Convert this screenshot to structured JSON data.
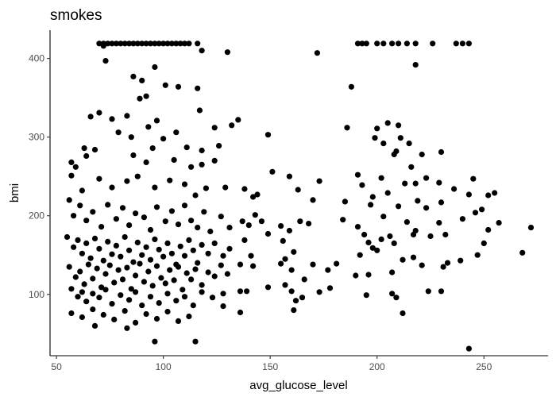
{
  "chart_data": {
    "type": "scatter",
    "title": "smokes",
    "xlabel": "avg_glucose_level",
    "ylabel": "bmi",
    "xlim": [
      47,
      280
    ],
    "ylim": [
      22,
      436
    ],
    "xticks": [
      50,
      100,
      150,
      200,
      250
    ],
    "yticks": [
      100,
      200,
      300,
      400
    ],
    "grid": false,
    "point_color": "#000000",
    "cluster_note": "dense cluster 55-120 glucose, 80-250 bmi; cap at 419 bmi",
    "points": [
      [
        70,
        419
      ],
      [
        72,
        419
      ],
      [
        74,
        419
      ],
      [
        76,
        419
      ],
      [
        78,
        419
      ],
      [
        80,
        419
      ],
      [
        82,
        419
      ],
      [
        84,
        419
      ],
      [
        86,
        419
      ],
      [
        88,
        419
      ],
      [
        90,
        419
      ],
      [
        92,
        419
      ],
      [
        94,
        419
      ],
      [
        96,
        419
      ],
      [
        98,
        419
      ],
      [
        100,
        419
      ],
      [
        102,
        419
      ],
      [
        104,
        419
      ],
      [
        106,
        419
      ],
      [
        108,
        419
      ],
      [
        110,
        419
      ],
      [
        112,
        419
      ],
      [
        116,
        419
      ],
      [
        191,
        419
      ],
      [
        193,
        419
      ],
      [
        195,
        419
      ],
      [
        200,
        419
      ],
      [
        203,
        419
      ],
      [
        207,
        419
      ],
      [
        210,
        419
      ],
      [
        214,
        419
      ],
      [
        218,
        419
      ],
      [
        226,
        419
      ],
      [
        237,
        419
      ],
      [
        240,
        419
      ],
      [
        243,
        419
      ],
      [
        72,
        416
      ],
      [
        118,
        410
      ],
      [
        130,
        408
      ],
      [
        172,
        407
      ],
      [
        73,
        397
      ],
      [
        218,
        392
      ],
      [
        86,
        377
      ],
      [
        96,
        389
      ],
      [
        90,
        372
      ],
      [
        101,
        366
      ],
      [
        107,
        364
      ],
      [
        92,
        352
      ],
      [
        89,
        349
      ],
      [
        116,
        362
      ],
      [
        188,
        364
      ],
      [
        66,
        326
      ],
      [
        70,
        331
      ],
      [
        76,
        323
      ],
      [
        83,
        327
      ],
      [
        97,
        321
      ],
      [
        117,
        334
      ],
      [
        124,
        312
      ],
      [
        132,
        315
      ],
      [
        135,
        322
      ],
      [
        79,
        306
      ],
      [
        85,
        300
      ],
      [
        93,
        313
      ],
      [
        100,
        298
      ],
      [
        106,
        306
      ],
      [
        149,
        303
      ],
      [
        186,
        312
      ],
      [
        200,
        311
      ],
      [
        205,
        318
      ],
      [
        210,
        315
      ],
      [
        63,
        286
      ],
      [
        68,
        284
      ],
      [
        86,
        277
      ],
      [
        95,
        286
      ],
      [
        111,
        287
      ],
      [
        118,
        283
      ],
      [
        126,
        289
      ],
      [
        199,
        299
      ],
      [
        203,
        292
      ],
      [
        211,
        299
      ],
      [
        215,
        292
      ],
      [
        209,
        282
      ],
      [
        230,
        281
      ],
      [
        57,
        268
      ],
      [
        59,
        262
      ],
      [
        64,
        276
      ],
      [
        92,
        268
      ],
      [
        105,
        271
      ],
      [
        113,
        262
      ],
      [
        118,
        265
      ],
      [
        124,
        270
      ],
      [
        151,
        256
      ],
      [
        159,
        250
      ],
      [
        173,
        244
      ],
      [
        191,
        252
      ],
      [
        202,
        248
      ],
      [
        208,
        278
      ],
      [
        216,
        262
      ],
      [
        221,
        278
      ],
      [
        57,
        251
      ],
      [
        62,
        232
      ],
      [
        70,
        247
      ],
      [
        76,
        236
      ],
      [
        83,
        244
      ],
      [
        88,
        250
      ],
      [
        96,
        236
      ],
      [
        103,
        245
      ],
      [
        110,
        240
      ],
      [
        115,
        226
      ],
      [
        120,
        235
      ],
      [
        129,
        236
      ],
      [
        138,
        234
      ],
      [
        144,
        227
      ],
      [
        163,
        233
      ],
      [
        193,
        239
      ],
      [
        198,
        224
      ],
      [
        205,
        229
      ],
      [
        213,
        241
      ],
      [
        218,
        241
      ],
      [
        223,
        248
      ],
      [
        229,
        242
      ],
      [
        236,
        234
      ],
      [
        243,
        227
      ],
      [
        245,
        247
      ],
      [
        252,
        226
      ],
      [
        255,
        229
      ],
      [
        142,
        224
      ],
      [
        170,
        220
      ],
      [
        185,
        218
      ],
      [
        197,
        214
      ],
      [
        210,
        212
      ],
      [
        219,
        219
      ],
      [
        223,
        210
      ],
      [
        230,
        217
      ],
      [
        249,
        208
      ],
      [
        257,
        191
      ],
      [
        272,
        185
      ],
      [
        268,
        153
      ],
      [
        56,
        220
      ],
      [
        58,
        200
      ],
      [
        61,
        213
      ],
      [
        64,
        194
      ],
      [
        67,
        205
      ],
      [
        71,
        186
      ],
      [
        74,
        214
      ],
      [
        78,
        196
      ],
      [
        81,
        210
      ],
      [
        84,
        188
      ],
      [
        87,
        203
      ],
      [
        91,
        198
      ],
      [
        94,
        182
      ],
      [
        97,
        211
      ],
      [
        101,
        193
      ],
      [
        104,
        206
      ],
      [
        107,
        189
      ],
      [
        110,
        213
      ],
      [
        113,
        194
      ],
      [
        116,
        185
      ],
      [
        119,
        205
      ],
      [
        122,
        180
      ],
      [
        127,
        199
      ],
      [
        131,
        185
      ],
      [
        137,
        193
      ],
      [
        140,
        188
      ],
      [
        143,
        201
      ],
      [
        146,
        193
      ],
      [
        155,
        187
      ],
      [
        159,
        181
      ],
      [
        164,
        193
      ],
      [
        168,
        190
      ],
      [
        184,
        195
      ],
      [
        191,
        186
      ],
      [
        194,
        176
      ],
      [
        203,
        199
      ],
      [
        206,
        174
      ],
      [
        214,
        192
      ],
      [
        218,
        181
      ],
      [
        229,
        191
      ],
      [
        240,
        196
      ],
      [
        246,
        204
      ],
      [
        232,
        176
      ],
      [
        252,
        182
      ],
      [
        55,
        173
      ],
      [
        58,
        160
      ],
      [
        60,
        169
      ],
      [
        62,
        152
      ],
      [
        64,
        165
      ],
      [
        66,
        146
      ],
      [
        68,
        171
      ],
      [
        70,
        158
      ],
      [
        72,
        143
      ],
      [
        74,
        167
      ],
      [
        76,
        151
      ],
      [
        78,
        162
      ],
      [
        80,
        148
      ],
      [
        82,
        173
      ],
      [
        84,
        156
      ],
      [
        86,
        141
      ],
      [
        88,
        166
      ],
      [
        90,
        150
      ],
      [
        92,
        160
      ],
      [
        94,
        144
      ],
      [
        96,
        170
      ],
      [
        98,
        157
      ],
      [
        100,
        148
      ],
      [
        102,
        165
      ],
      [
        104,
        152
      ],
      [
        106,
        138
      ],
      [
        108,
        161
      ],
      [
        110,
        149
      ],
      [
        112,
        169
      ],
      [
        114,
        156
      ],
      [
        116,
        140
      ],
      [
        118,
        163
      ],
      [
        121,
        152
      ],
      [
        124,
        165
      ],
      [
        128,
        149
      ],
      [
        131,
        158
      ],
      [
        138,
        169
      ],
      [
        141,
        149
      ],
      [
        149,
        177
      ],
      [
        156,
        168
      ],
      [
        157,
        145
      ],
      [
        161,
        154
      ],
      [
        196,
        166
      ],
      [
        198,
        159
      ],
      [
        200,
        156
      ],
      [
        202,
        170
      ],
      [
        208,
        165
      ],
      [
        217,
        176
      ],
      [
        225,
        174
      ],
      [
        250,
        165
      ],
      [
        56,
        135
      ],
      [
        59,
        122
      ],
      [
        61,
        129
      ],
      [
        63,
        113
      ],
      [
        65,
        138
      ],
      [
        67,
        120
      ],
      [
        69,
        133
      ],
      [
        71,
        109
      ],
      [
        73,
        126
      ],
      [
        75,
        137
      ],
      [
        77,
        115
      ],
      [
        79,
        131
      ],
      [
        81,
        119
      ],
      [
        83,
        134
      ],
      [
        85,
        107
      ],
      [
        87,
        124
      ],
      [
        89,
        139
      ],
      [
        91,
        116
      ],
      [
        93,
        129
      ],
      [
        95,
        111
      ],
      [
        97,
        136
      ],
      [
        99,
        121
      ],
      [
        101,
        114
      ],
      [
        103,
        131
      ],
      [
        105,
        118
      ],
      [
        107,
        135
      ],
      [
        109,
        106
      ],
      [
        111,
        127
      ],
      [
        113,
        119
      ],
      [
        115,
        132
      ],
      [
        118,
        112
      ],
      [
        121,
        128
      ],
      [
        124,
        123
      ],
      [
        127,
        137
      ],
      [
        130,
        126
      ],
      [
        136,
        138
      ],
      [
        142,
        136
      ],
      [
        155,
        139
      ],
      [
        160,
        131
      ],
      [
        166,
        119
      ],
      [
        170,
        138
      ],
      [
        177,
        131
      ],
      [
        181,
        139
      ],
      [
        190,
        124
      ],
      [
        192,
        150
      ],
      [
        196,
        125
      ],
      [
        207,
        128
      ],
      [
        212,
        144
      ],
      [
        217,
        147
      ],
      [
        221,
        137
      ],
      [
        231,
        135
      ],
      [
        233,
        140
      ],
      [
        239,
        143
      ],
      [
        247,
        150
      ],
      [
        57,
        107
      ],
      [
        60,
        97
      ],
      [
        62,
        103
      ],
      [
        64,
        91
      ],
      [
        67,
        101
      ],
      [
        70,
        96
      ],
      [
        73,
        106
      ],
      [
        76,
        88
      ],
      [
        80,
        99
      ],
      [
        84,
        93
      ],
      [
        87,
        103
      ],
      [
        90,
        86
      ],
      [
        94,
        97
      ],
      [
        98,
        89
      ],
      [
        102,
        101
      ],
      [
        106,
        92
      ],
      [
        110,
        97
      ],
      [
        114,
        86
      ],
      [
        118,
        103
      ],
      [
        123,
        96
      ],
      [
        128,
        101
      ],
      [
        136,
        104
      ],
      [
        139,
        104
      ],
      [
        149,
        109
      ],
      [
        157,
        112
      ],
      [
        160,
        104
      ],
      [
        165,
        96
      ],
      [
        173,
        103
      ],
      [
        178,
        108
      ],
      [
        195,
        99
      ],
      [
        207,
        101
      ],
      [
        209,
        96
      ],
      [
        224,
        104
      ],
      [
        230,
        104
      ],
      [
        57,
        76
      ],
      [
        62,
        71
      ],
      [
        67,
        81
      ],
      [
        72,
        74
      ],
      [
        77,
        68
      ],
      [
        82,
        79
      ],
      [
        87,
        64
      ],
      [
        92,
        75
      ],
      [
        97,
        69
      ],
      [
        102,
        78
      ],
      [
        107,
        66
      ],
      [
        112,
        72
      ],
      [
        128,
        85
      ],
      [
        136,
        77
      ],
      [
        161,
        80
      ],
      [
        162,
        92
      ],
      [
        212,
        76
      ],
      [
        68,
        60
      ],
      [
        83,
        57
      ],
      [
        96,
        40
      ],
      [
        115,
        40
      ],
      [
        243,
        31
      ]
    ]
  }
}
